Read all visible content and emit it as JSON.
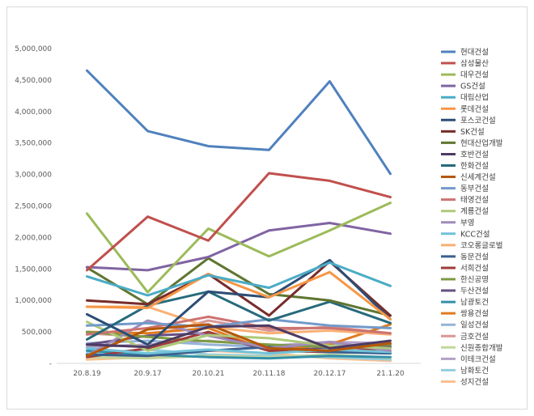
{
  "chart_data": {
    "type": "line",
    "title": "",
    "xlabel": "",
    "ylabel": "",
    "ylim": [
      0,
      5000000
    ],
    "y_ticks": [
      "-",
      "500,000",
      "1,000,000",
      "1,500,000",
      "2,000,000",
      "2,500,000",
      "3,000,000",
      "3,500,000",
      "4,000,000",
      "4,500,000",
      "5,000,000"
    ],
    "categories": [
      "20.8.19",
      "20.9.17",
      "20.10.21",
      "20.11.18",
      "20.12.17",
      "21.1.20"
    ],
    "legend_position": "right",
    "grid": false,
    "series": [
      {
        "name": "현대건설",
        "color": "#4F81BD",
        "values": [
          4650000,
          3690000,
          3450000,
          3390000,
          4480000,
          3010000
        ]
      },
      {
        "name": "삼성물산",
        "color": "#C0504D",
        "values": [
          1480000,
          2330000,
          1950000,
          3020000,
          2900000,
          2640000
        ]
      },
      {
        "name": "대우건설",
        "color": "#9BBB59",
        "values": [
          2380000,
          1130000,
          2140000,
          1700000,
          2110000,
          2550000
        ]
      },
      {
        "name": "GS건설",
        "color": "#8064A2",
        "values": [
          1530000,
          1480000,
          1690000,
          2110000,
          2230000,
          2060000
        ]
      },
      {
        "name": "대림산업",
        "color": "#4BACC6",
        "values": [
          1380000,
          1080000,
          1400000,
          1200000,
          1600000,
          1230000
        ]
      },
      {
        "name": "롯데건설",
        "color": "#F79646",
        "values": [
          900000,
          880000,
          1420000,
          1050000,
          1450000,
          700000
        ]
      },
      {
        "name": "포스코건설",
        "color": "#2C4D75",
        "values": [
          780000,
          300000,
          1140000,
          1050000,
          1640000,
          700000
        ]
      },
      {
        "name": "SK건설",
        "color": "#772C2A",
        "values": [
          1000000,
          940000,
          1420000,
          760000,
          1620000,
          760000
        ]
      },
      {
        "name": "현대산업개발",
        "color": "#5F7530",
        "values": [
          1520000,
          940000,
          1670000,
          1100000,
          1000000,
          760000
        ]
      },
      {
        "name": "호반건설",
        "color": "#4D3B62",
        "values": [
          300000,
          260000,
          580000,
          600000,
          240000,
          360000
        ]
      },
      {
        "name": "한화건설",
        "color": "#276A7C",
        "values": [
          380000,
          920000,
          1140000,
          680000,
          980000,
          640000
        ]
      },
      {
        "name": "신세계건설",
        "color": "#B65708",
        "values": [
          120000,
          540000,
          620000,
          240000,
          200000,
          320000
        ]
      },
      {
        "name": "동부건설",
        "color": "#729ACA",
        "values": [
          600000,
          640000,
          580000,
          700000,
          600000,
          560000
        ]
      },
      {
        "name": "태영건설",
        "color": "#CD7371",
        "values": [
          460000,
          560000,
          740000,
          560000,
          560000,
          480000
        ]
      },
      {
        "name": "계룡건설",
        "color": "#AFC97A",
        "values": [
          660000,
          200000,
          450000,
          400000,
          280000,
          240000
        ]
      },
      {
        "name": "부영",
        "color": "#A18BBA",
        "values": [
          120000,
          680000,
          440000,
          240000,
          340000,
          200000
        ]
      },
      {
        "name": "KCC건설",
        "color": "#70C2D8",
        "values": [
          240000,
          160000,
          220000,
          160000,
          220000,
          180000
        ]
      },
      {
        "name": "코오롱글로벌",
        "color": "#F9B074",
        "values": [
          900000,
          900000,
          580000,
          480000,
          520000,
          460000
        ]
      },
      {
        "name": "동문건설",
        "color": "#3A5F8E",
        "values": [
          140000,
          120000,
          200000,
          260000,
          180000,
          160000
        ]
      },
      {
        "name": "서희건설",
        "color": "#9E3C3A",
        "values": [
          100000,
          240000,
          500000,
          200000,
          180000,
          240000
        ]
      },
      {
        "name": "한신공영",
        "color": "#7E9A43",
        "values": [
          500000,
          420000,
          350000,
          300000,
          260000,
          300000
        ]
      },
      {
        "name": "두산건설",
        "color": "#664F82",
        "values": [
          300000,
          440000,
          480000,
          200000,
          240000,
          260000
        ]
      },
      {
        "name": "남광토건",
        "color": "#3490A8",
        "values": [
          200000,
          140000,
          100000,
          80000,
          120000,
          100000
        ]
      },
      {
        "name": "쌍용건설",
        "color": "#E07A1F",
        "values": [
          500000,
          480000,
          560000,
          200000,
          300000,
          620000
        ]
      },
      {
        "name": "일성건설",
        "color": "#95B3D7",
        "values": [
          320000,
          360000,
          300000,
          260000,
          300000,
          280000
        ]
      },
      {
        "name": "금호건설",
        "color": "#D99694",
        "values": [
          480000,
          420000,
          680000,
          520000,
          580000,
          480000
        ]
      },
      {
        "name": "신원종합개발",
        "color": "#C3D69B",
        "values": [
          100000,
          80000,
          120000,
          100000,
          140000,
          90000
        ]
      },
      {
        "name": "이테크건설",
        "color": "#B2A1C7",
        "values": [
          260000,
          300000,
          360000,
          280000,
          340000,
          320000
        ]
      },
      {
        "name": "남화토건",
        "color": "#92CDDC",
        "values": [
          160000,
          220000,
          140000,
          120000,
          100000,
          60000
        ]
      },
      {
        "name": "성지건설",
        "color": "#FAC090",
        "values": [
          60000,
          100000,
          200000,
          160000,
          80000,
          40000
        ]
      }
    ]
  }
}
